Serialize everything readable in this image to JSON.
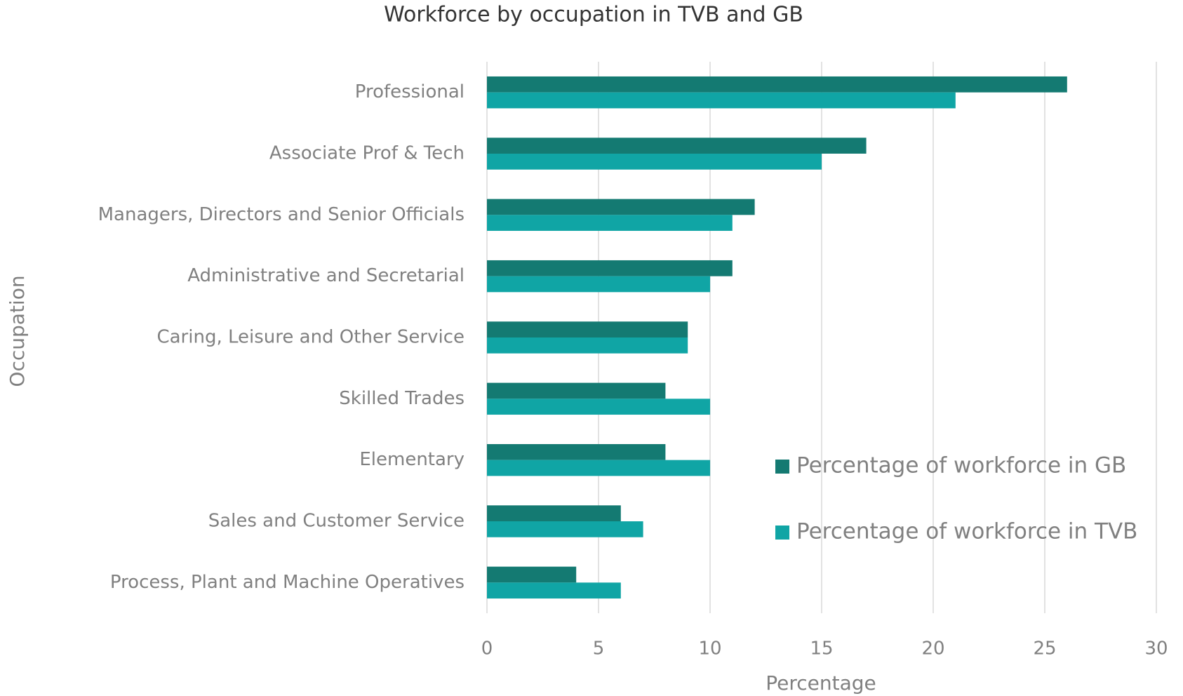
{
  "chart_data": {
    "type": "bar",
    "orientation": "horizontal",
    "title": "Workforce by occupation in TVB and GB",
    "x_label": "Percentage",
    "y_label": "Occupation",
    "categories": [
      "Professional",
      "Associate Prof & Tech",
      "Managers, Directors and Senior Officials",
      "Administrative and Secretarial",
      "Caring, Leisure and Other Service",
      "Skilled Trades",
      "Elementary",
      "Sales and Customer Service",
      "Process, Plant and Machine Operatives"
    ],
    "series": [
      {
        "name": "Percentage of workforce in GB",
        "color": "#147a72",
        "values": [
          26,
          17,
          12,
          11,
          9,
          8,
          8,
          6,
          4
        ]
      },
      {
        "name": "Percentage of workforce in TVB",
        "color": "#10a5a5",
        "values": [
          21,
          15,
          11,
          10,
          9,
          10,
          10,
          7,
          6
        ]
      }
    ],
    "xlim": [
      0,
      30
    ],
    "xticks": [
      0,
      5,
      10,
      15,
      20,
      25,
      30
    ],
    "grid": true,
    "legend": "right"
  }
}
